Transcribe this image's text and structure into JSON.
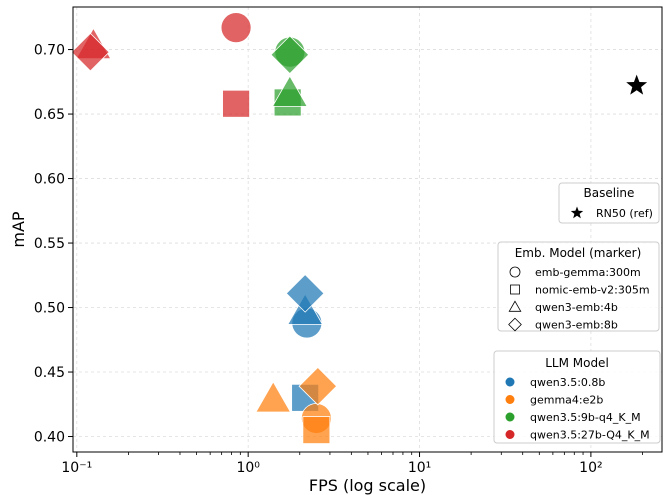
{
  "chart_data": {
    "type": "scatter",
    "xlabel": "FPS (log scale)",
    "ylabel": "mAP",
    "x_scale": "log",
    "xlim": [
      0.095,
      260
    ],
    "ylim": [
      0.388,
      0.733
    ],
    "x_ticks": [
      0.1,
      1,
      10,
      100
    ],
    "x_tick_labels": [
      "10⁻¹",
      "10⁰",
      "10¹",
      "10²"
    ],
    "y_ticks": [
      0.4,
      0.45,
      0.5,
      0.55,
      0.6,
      0.65,
      0.7
    ],
    "y_tick_labels": [
      "0.40",
      "0.45",
      "0.50",
      "0.55",
      "0.60",
      "0.65",
      "0.70"
    ],
    "grid": true,
    "colors": {
      "qwen3.5:0.8b": "#1f77b4",
      "gemma4:e2b": "#ff7f0e",
      "qwen3.5:9b-q4_K_M": "#2ca02c",
      "qwen3.5:27b-Q4_K_M": "#d62728"
    },
    "points": [
      {
        "x": 2.2,
        "y": 0.488,
        "llm": "qwen3.5:0.8b",
        "emb": "emb-gemma:300m"
      },
      {
        "x": 2.15,
        "y": 0.43,
        "llm": "qwen3.5:0.8b",
        "emb": "nomic-emb-v2:305m"
      },
      {
        "x": 2.15,
        "y": 0.497,
        "llm": "qwen3.5:0.8b",
        "emb": "qwen3-emb:4b"
      },
      {
        "x": 2.15,
        "y": 0.511,
        "llm": "qwen3.5:0.8b",
        "emb": "qwen3-emb:8b"
      },
      {
        "x": 2.5,
        "y": 0.414,
        "llm": "gemma4:e2b",
        "emb": "emb-gemma:300m"
      },
      {
        "x": 2.5,
        "y": 0.405,
        "llm": "gemma4:e2b",
        "emb": "nomic-emb-v2:305m"
      },
      {
        "x": 1.4,
        "y": 0.429,
        "llm": "gemma4:e2b",
        "emb": "qwen3-emb:4b"
      },
      {
        "x": 2.55,
        "y": 0.439,
        "llm": "gemma4:e2b",
        "emb": "qwen3-emb:8b"
      },
      {
        "x": 1.75,
        "y": 0.698,
        "llm": "qwen3.5:9b-q4_K_M",
        "emb": "emb-gemma:300m"
      },
      {
        "x": 1.7,
        "y": 0.659,
        "llm": "qwen3.5:9b-q4_K_M",
        "emb": "nomic-emb-v2:305m"
      },
      {
        "x": 1.75,
        "y": 0.666,
        "llm": "qwen3.5:9b-q4_K_M",
        "emb": "qwen3-emb:4b"
      },
      {
        "x": 1.75,
        "y": 0.696,
        "llm": "qwen3.5:9b-q4_K_M",
        "emb": "qwen3-emb:8b"
      },
      {
        "x": 0.85,
        "y": 0.717,
        "llm": "qwen3.5:27b-Q4_K_M",
        "emb": "emb-gemma:300m"
      },
      {
        "x": 0.85,
        "y": 0.658,
        "llm": "qwen3.5:27b-Q4_K_M",
        "emb": "nomic-emb-v2:305m"
      },
      {
        "x": 0.125,
        "y": 0.703,
        "llm": "qwen3.5:27b-Q4_K_M",
        "emb": "qwen3-emb:4b"
      },
      {
        "x": 0.12,
        "y": 0.698,
        "llm": "qwen3.5:27b-Q4_K_M",
        "emb": "qwen3-emb:8b"
      }
    ],
    "baseline": {
      "name": "RN50 (ref)",
      "x": 185,
      "y": 0.672
    },
    "legends": {
      "baseline": {
        "title": "Baseline",
        "items": [
          "RN50 (ref)"
        ]
      },
      "marker": {
        "title": "Emb. Model (marker)",
        "items": [
          "emb-gemma:300m",
          "nomic-emb-v2:305m",
          "qwen3-emb:4b",
          "qwen3-emb:8b"
        ]
      },
      "color": {
        "title": "LLM Model",
        "items": [
          "qwen3.5:0.8b",
          "gemma4:e2b",
          "qwen3.5:9b-q4_K_M",
          "qwen3.5:27b-Q4_K_M"
        ]
      }
    },
    "legend_placement": "right"
  }
}
